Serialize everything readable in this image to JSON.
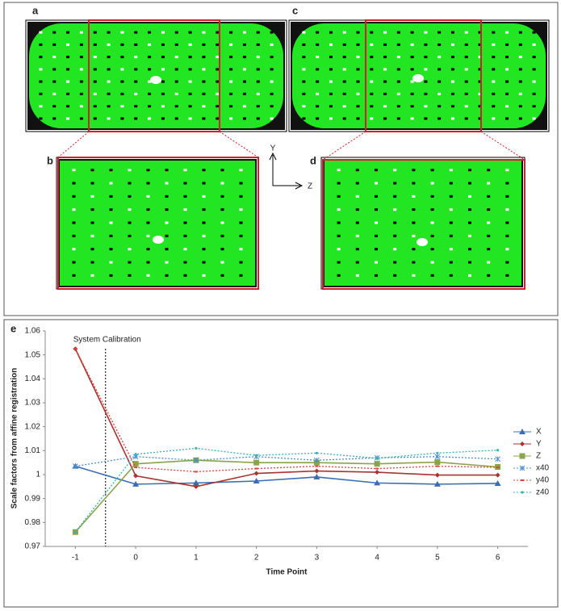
{
  "panels": {
    "a": "a",
    "b": "b",
    "c": "c",
    "d": "d"
  },
  "axes_icon": {
    "y": "Y",
    "z": "Z"
  },
  "chart_data": {
    "type": "line",
    "panel_label": "e",
    "x": [
      -1,
      0,
      1,
      2,
      3,
      4,
      5,
      6
    ],
    "xlim": [
      -1.5,
      6.5
    ],
    "xticks": [
      -1,
      0,
      1,
      2,
      3,
      4,
      5,
      6
    ],
    "ylim": [
      0.97,
      1.06
    ],
    "yticks": [
      0.97,
      0.98,
      0.99,
      1,
      1.01,
      1.02,
      1.03,
      1.04,
      1.05,
      1.06
    ],
    "xlabel": "Time Point",
    "ylabel": "Scale factors from affine registration",
    "annotation": {
      "text": "System Calibration",
      "x": -0.5
    },
    "legend": "right",
    "series": [
      {
        "name": "X",
        "color": "#3b6db3",
        "style": "solid",
        "marker": "triangle",
        "values": [
          1.0035,
          0.996,
          0.9965,
          0.9973,
          0.999,
          0.9965,
          0.996,
          0.9963
        ]
      },
      {
        "name": "Y",
        "color": "#a8332f",
        "style": "solid",
        "marker": "diamond",
        "values": [
          1.0525,
          0.9995,
          0.995,
          1.0005,
          1.0015,
          1.001,
          0.9998,
          0.9998
        ]
      },
      {
        "name": "Z",
        "color": "#8aa44a",
        "style": "solid",
        "marker": "square",
        "values": [
          0.976,
          1.0045,
          1.006,
          1.005,
          1.005,
          1.0045,
          1.0052,
          1.0032
        ]
      },
      {
        "name": "x40",
        "color": "#4a8fd0",
        "style": "dotted",
        "marker": "star",
        "values": [
          1.0035,
          1.0075,
          1.006,
          1.0075,
          1.006,
          1.007,
          1.0075,
          1.0065
        ]
      },
      {
        "name": "y40",
        "color": "#e0413a",
        "style": "dotted",
        "marker": "plus",
        "values": [
          1.0525,
          1.003,
          1.0012,
          1.0025,
          1.0035,
          1.0025,
          1.0035,
          1.003
        ]
      },
      {
        "name": "z40",
        "color": "#39b3b0",
        "style": "dotted",
        "marker": "dot",
        "values": [
          0.976,
          1.0085,
          1.011,
          1.008,
          1.009,
          1.0068,
          1.009,
          1.0102
        ]
      }
    ]
  }
}
